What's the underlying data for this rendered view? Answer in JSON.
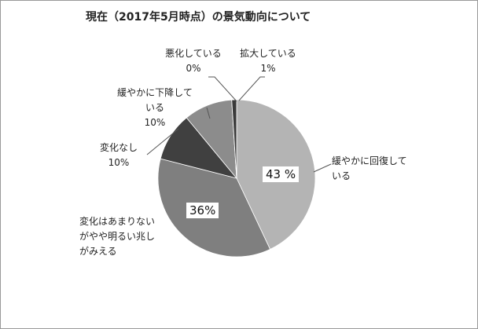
{
  "chart_data": {
    "type": "pie",
    "title": "現在（2017年5月時点）の景気動向について",
    "categories": [
      "緩やかに回復して\nいる",
      "変化はあまりない\nがやや明るい兆し\nがみえる",
      "変化なし",
      "緩やかに下降して\nいる",
      "悪化している",
      "拡大している"
    ],
    "values": [
      43,
      36,
      10,
      10,
      0,
      1
    ],
    "value_labels": [
      "43 %",
      "36%",
      "10%",
      "10%",
      "0%",
      "1%"
    ],
    "colors": [
      "#b4b4b4",
      "#7f7f7f",
      "#404040",
      "#8c8c8c",
      "#5a5a5a",
      "#3a3a3a"
    ]
  }
}
